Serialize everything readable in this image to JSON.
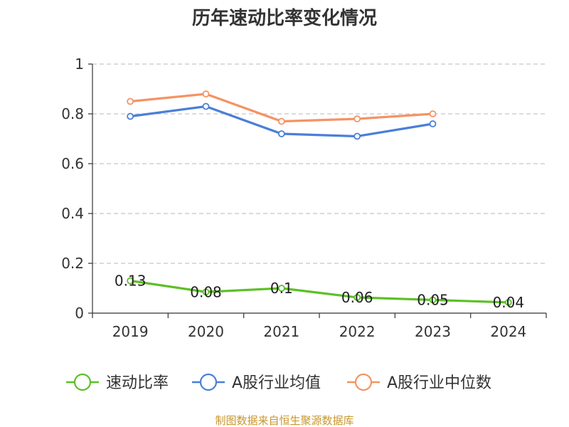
{
  "chart_data": {
    "type": "line",
    "title": "历年速动比率变化情况",
    "categories": [
      "2019",
      "2020",
      "2021",
      "2022",
      "2023",
      "2024"
    ],
    "y_ticks": [
      "0",
      "0.2",
      "0.4",
      "0.6",
      "0.8",
      "1"
    ],
    "ylim": [
      0,
      1
    ],
    "grid": true,
    "legend_position": "bottom",
    "series": [
      {
        "name": "速动比率",
        "color": "#5cc027",
        "values": [
          0.13,
          0.085,
          0.1,
          0.063,
          0.053,
          0.043
        ],
        "data_labels": [
          "0.13",
          "0.08",
          "0.1",
          "0.06",
          "0.05",
          "0.04"
        ]
      },
      {
        "name": "A股行业均值",
        "color": "#4a7fd8",
        "values": [
          0.79,
          0.83,
          0.72,
          0.71,
          0.76,
          null
        ]
      },
      {
        "name": "A股行业中位数",
        "color": "#f59363",
        "values": [
          0.85,
          0.88,
          0.77,
          0.78,
          0.8,
          null
        ]
      }
    ]
  },
  "source": "制图数据来自恒生聚源数据库"
}
